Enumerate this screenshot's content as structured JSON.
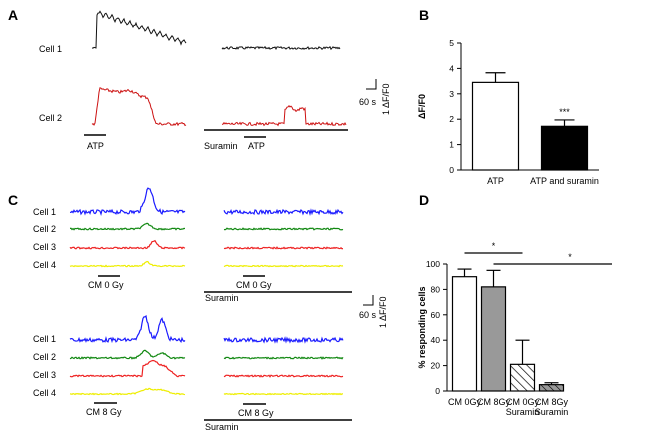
{
  "panels": {
    "A": {
      "letter": "A",
      "cells": [
        "Cell 1",
        "Cell 2"
      ],
      "stim_labels": [
        "ATP",
        "ATP"
      ],
      "suramin_label": "Suramin",
      "scalebar": {
        "time": "60 s",
        "amp": "1 ΔF/F0"
      },
      "trace_colors": [
        "#111111",
        "#cc1111"
      ]
    },
    "C": {
      "letter": "C",
      "cells": [
        "Cell 1",
        "Cell 2",
        "Cell 3",
        "Cell 4"
      ],
      "cells_bottom": [
        "Cell 1",
        "Cell 2",
        "Cell 3",
        "Cell 4"
      ],
      "stim_top": [
        "CM 0 Gy",
        "CM 0 Gy"
      ],
      "stim_bottom": [
        "CM 8 Gy",
        "CM 8 Gy"
      ],
      "suramin_label": "Suramin",
      "scalebar": {
        "time": "60 s",
        "amp": "1 ΔF/F0"
      },
      "trace_colors": [
        "#1a1aff",
        "#118811",
        "#ee2222",
        "#eeee00"
      ]
    }
  },
  "chart_data": [
    {
      "panel": "B",
      "type": "bar",
      "title": "",
      "xlabel": "",
      "ylabel": "ΔF/F0",
      "categories": [
        "ATP",
        "ATP and suramin"
      ],
      "values": [
        3.45,
        1.72
      ],
      "errors": [
        0.38,
        0.25
      ],
      "fills": [
        "#ffffff",
        "#000000"
      ],
      "ylim": [
        0,
        5
      ],
      "yticks": [
        "0",
        "1",
        "2",
        "3",
        "4",
        "5"
      ],
      "annotations": [
        "***"
      ]
    },
    {
      "panel": "D",
      "type": "bar",
      "title": "",
      "xlabel": "",
      "ylabel": "% responding cells",
      "categories": [
        [
          "CM 0Gy"
        ],
        [
          "CM 8Gy"
        ],
        [
          "CM 0Gy",
          "Suramin"
        ],
        [
          "CM 8Gy",
          "Suramin"
        ]
      ],
      "values": [
        90,
        82,
        21,
        5
      ],
      "errors": [
        6,
        13,
        19,
        1.5
      ],
      "fills": [
        "#ffffff",
        "#999999",
        "hatch",
        "hatch-gray"
      ],
      "ylim": [
        0,
        100
      ],
      "yticks": [
        "0",
        "20",
        "40",
        "60",
        "80",
        "100"
      ],
      "significance": [
        {
          "from": 0,
          "to": 2,
          "label": "*"
        },
        {
          "from": 1,
          "to": 3,
          "label": "*"
        }
      ]
    }
  ]
}
